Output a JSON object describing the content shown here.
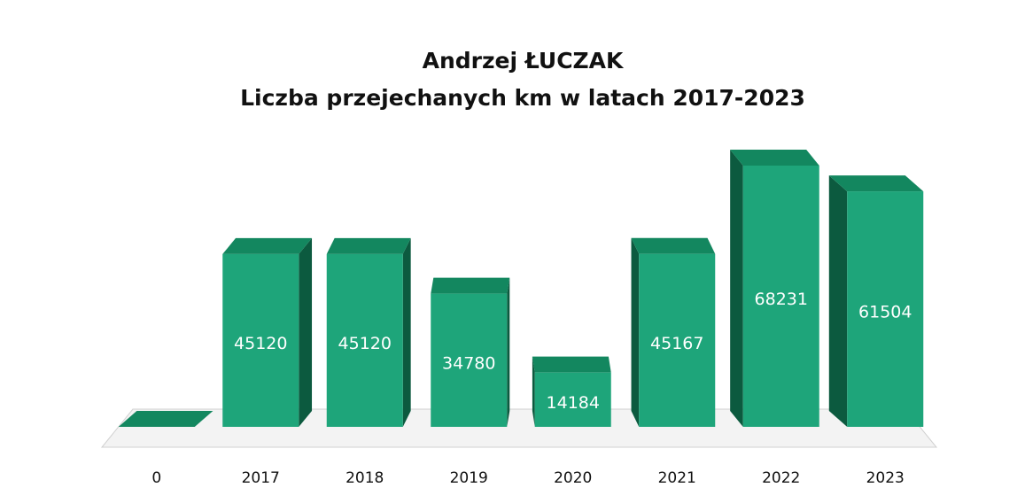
{
  "chart_data": {
    "type": "bar3d",
    "title": "Andrzej ŁUCZAK",
    "subtitle": "Liczba przejechanych km w latach 2017-2023",
    "categories": [
      "0",
      "2017",
      "2018",
      "2019",
      "2020",
      "2021",
      "2022",
      "2023"
    ],
    "values": [
      0,
      45120,
      45120,
      34780,
      14184,
      45167,
      68231,
      61504
    ],
    "value_labels": [
      null,
      "45120",
      "45120",
      "34780",
      "14184",
      "45167",
      "68231",
      "61504"
    ],
    "color": "#1ea57a"
  }
}
